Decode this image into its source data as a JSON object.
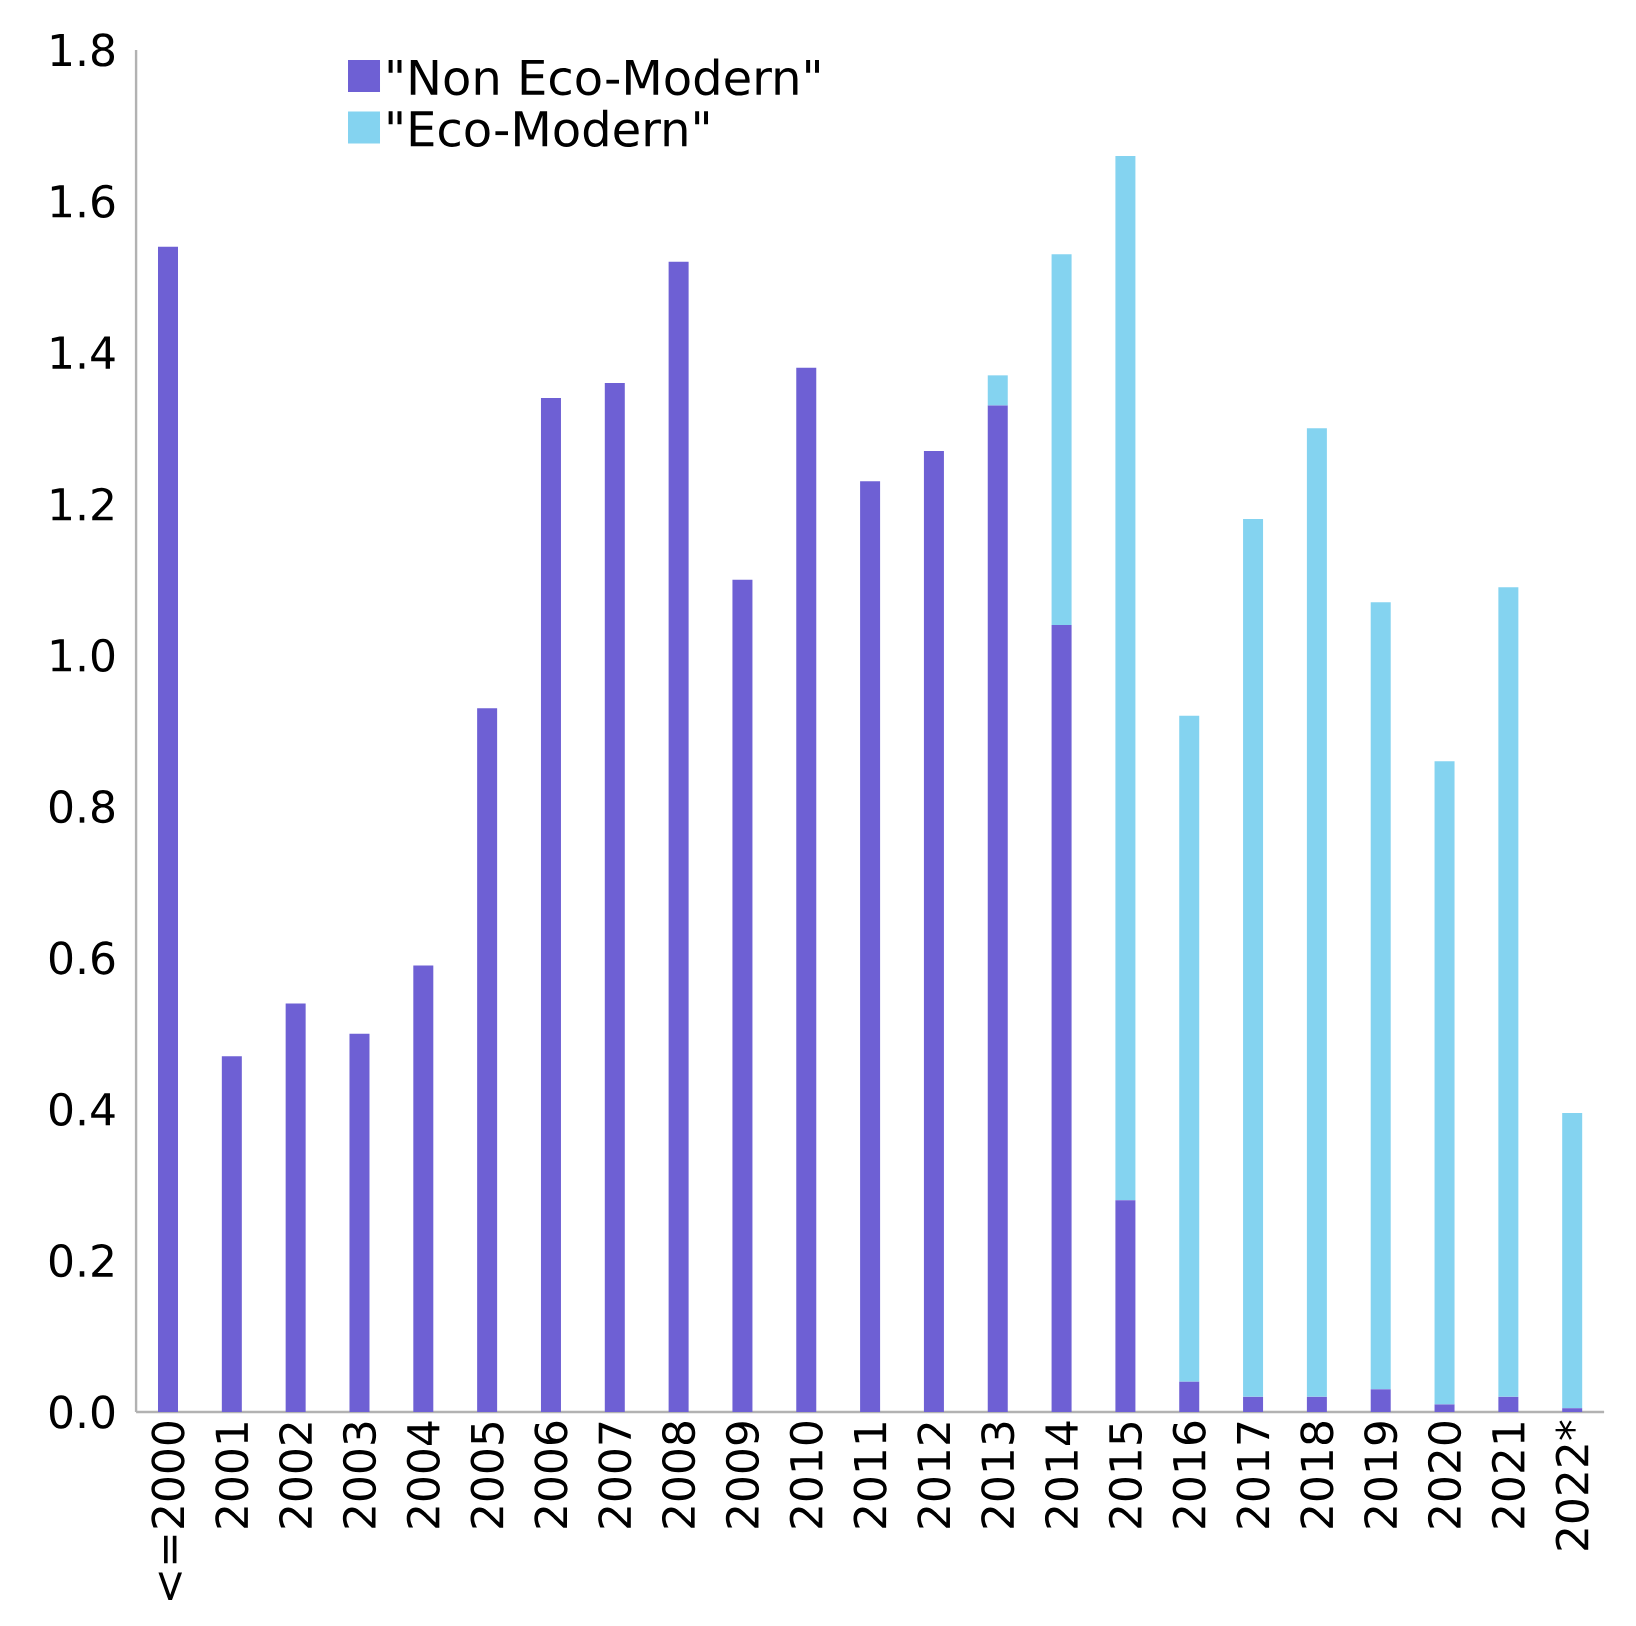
{
  "chart_data": {
    "type": "bar",
    "stacked": true,
    "categories": [
      "<=2000",
      "2001",
      "2002",
      "2003",
      "2004",
      "2005",
      "2006",
      "2007",
      "2008",
      "2009",
      "2010",
      "2011",
      "2012",
      "2013",
      "2014",
      "2015",
      "2016",
      "2017",
      "2018",
      "2019",
      "2020",
      "2021",
      "2022*"
    ],
    "series": [
      {
        "name": "\"Non Eco-Modern\"",
        "color": "#6e60d4",
        "values": [
          1.54,
          0.47,
          0.54,
          0.5,
          0.59,
          0.93,
          1.34,
          1.36,
          1.52,
          1.1,
          1.38,
          1.23,
          1.27,
          1.33,
          1.04,
          0.28,
          0.04,
          0.02,
          0.02,
          0.03,
          0.01,
          0.02,
          0.005
        ]
      },
      {
        "name": "\"Eco-Modern\"",
        "color": "#84d3f0",
        "values": [
          0,
          0,
          0,
          0,
          0,
          0,
          0,
          0,
          0,
          0,
          0,
          0,
          0,
          0.04,
          0.49,
          1.38,
          0.88,
          1.16,
          1.28,
          1.04,
          0.85,
          1.07,
          0.39
        ]
      }
    ],
    "ylim": [
      0,
      1.8
    ],
    "yticks": [
      {
        "value": 0,
        "label": "0.0"
      },
      0.2,
      0.4,
      0.6,
      0.8,
      {
        "value": 1,
        "label": "1.0"
      },
      1.2,
      1.4,
      1.6,
      1.8
    ],
    "grid": false,
    "legend": "top"
  }
}
